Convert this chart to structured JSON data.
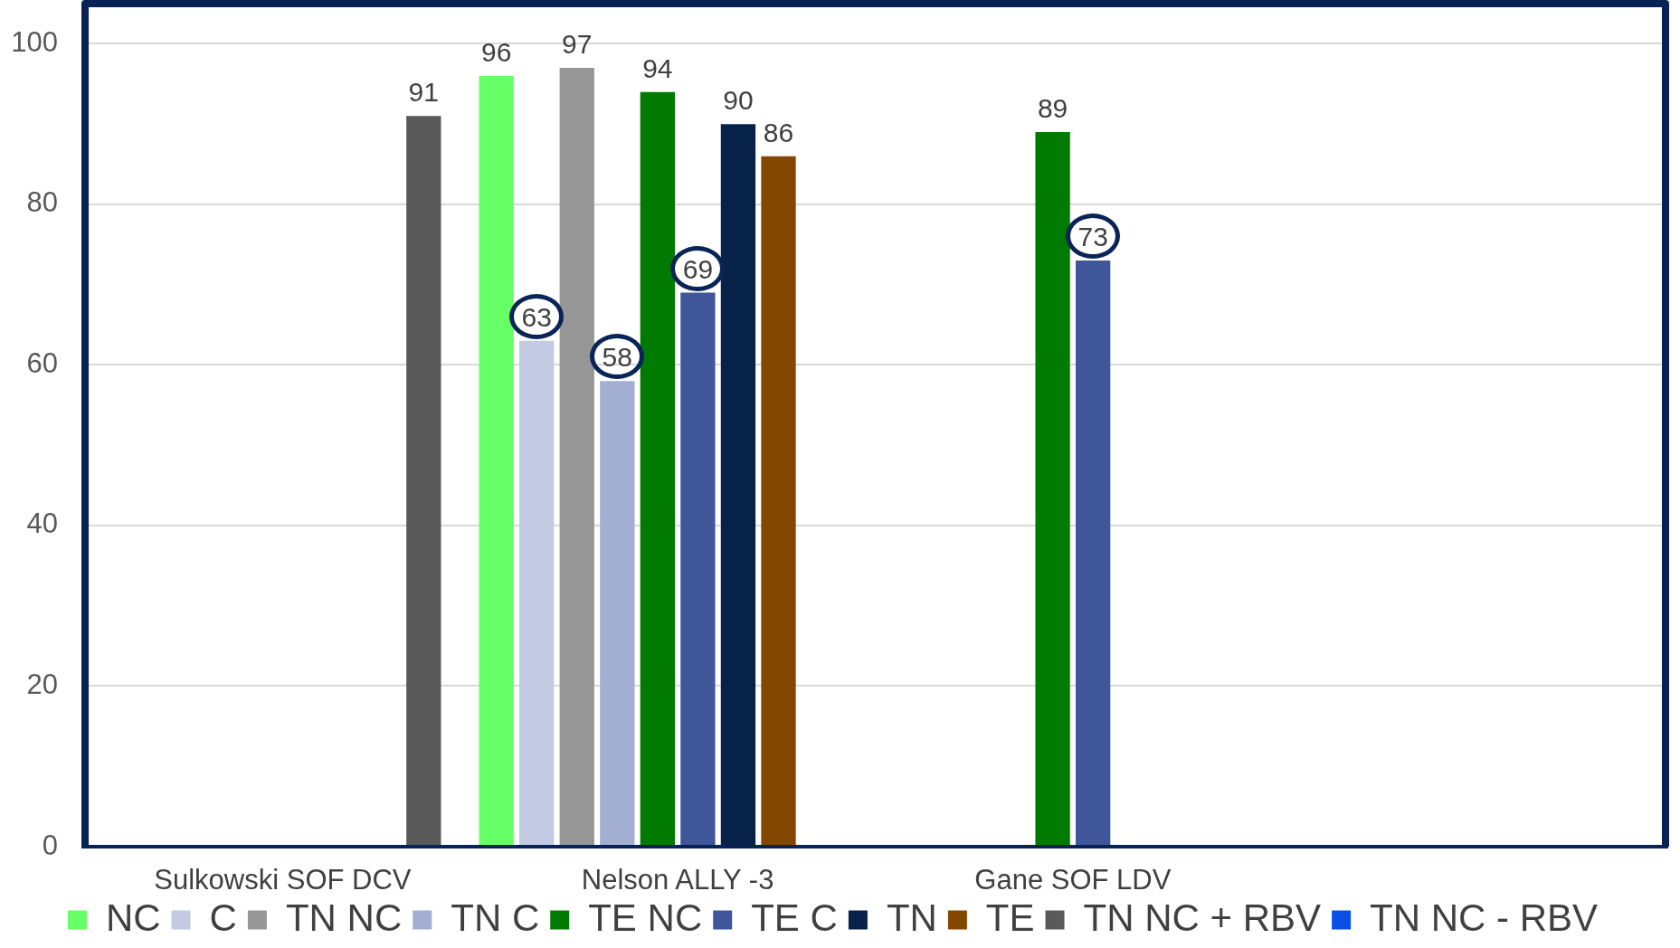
{
  "chart_data": {
    "type": "bar",
    "categories": [
      "Sulkowski SOF DCV",
      "Nelson ALLY -3",
      "Gane SOF LDV",
      null
    ],
    "series": [
      {
        "name": "NC",
        "color": "#66ff66",
        "values": [
          null,
          96,
          null,
          null
        ]
      },
      {
        "name": "C",
        "color": "#c3cbe2",
        "values": [
          null,
          63,
          null,
          null
        ]
      },
      {
        "name": "TN NC",
        "color": "#969696",
        "values": [
          null,
          97,
          null,
          null
        ]
      },
      {
        "name": "TN C",
        "color": "#a3aed3",
        "values": [
          null,
          58,
          null,
          null
        ]
      },
      {
        "name": "TE NC",
        "color": "#007a00",
        "values": [
          null,
          94,
          89,
          null
        ]
      },
      {
        "name": "TE C",
        "color": "#40569a",
        "values": [
          null,
          69,
          73,
          null
        ]
      },
      {
        "name": "TN",
        "color": "#062249",
        "values": [
          null,
          90,
          null,
          null
        ]
      },
      {
        "name": "TE",
        "color": "#844700",
        "values": [
          null,
          86,
          null,
          null
        ]
      },
      {
        "name": "TN NC + RBV",
        "color": "#595959",
        "values": [
          91,
          null,
          null,
          null
        ]
      },
      {
        "name": "TN NC - RBV",
        "color": "#0a50e6",
        "values": [
          null,
          null,
          null,
          null
        ]
      }
    ],
    "ylim": [
      0,
      105
    ],
    "yticks": [
      0,
      20,
      40,
      60,
      80,
      100
    ],
    "grid": "y",
    "legend": "bottom",
    "data_labels": true
  }
}
